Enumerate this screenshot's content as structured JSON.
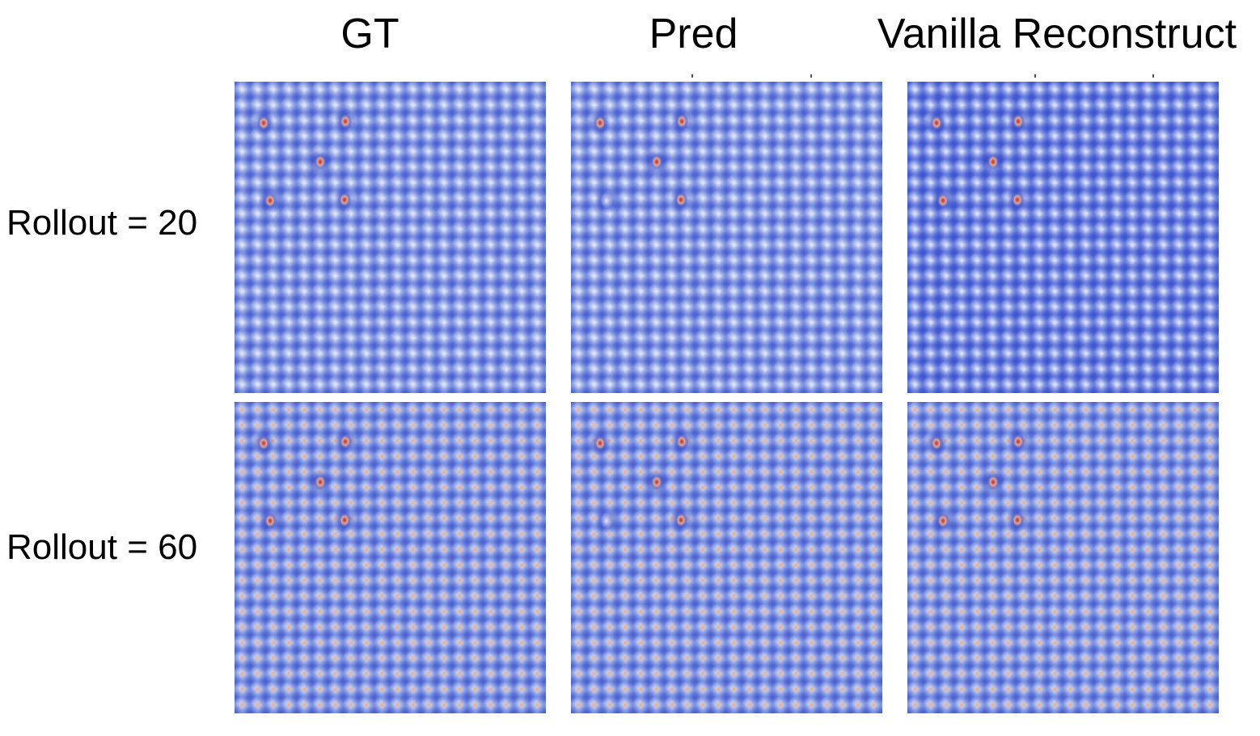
{
  "figure": {
    "columns": [
      {
        "label": "GT"
      },
      {
        "label": "Pred"
      },
      {
        "label": "Vanilla Reconstruct"
      }
    ],
    "rows": [
      {
        "label": "Rollout = 20"
      },
      {
        "label": "Rollout = 60"
      }
    ],
    "colormap": {
      "low": "#3b56d6",
      "mid": "#c9d3ee",
      "high": "#c8201f",
      "warm": "#e8a07c"
    }
  }
}
